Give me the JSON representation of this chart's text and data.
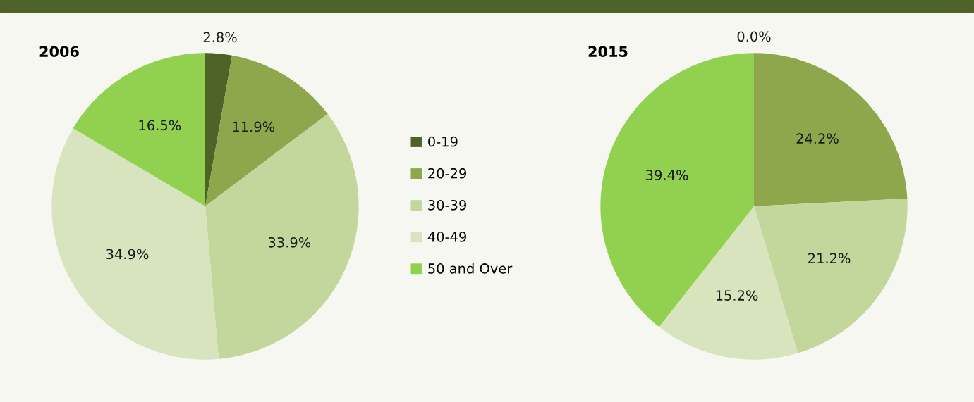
{
  "chart_data": [
    {
      "type": "pie",
      "title": "2006",
      "categories": [
        "0-19",
        "20-29",
        "30-39",
        "40-49",
        "50 and Over"
      ],
      "values": [
        2.8,
        11.9,
        33.9,
        34.9,
        16.5
      ],
      "value_labels": [
        "2.8%",
        "11.9%",
        "33.9%",
        "34.9%",
        "16.5%"
      ],
      "colors": [
        "#4f6228",
        "#8ea64c",
        "#c3d69b",
        "#d7e4bd",
        "#92d050"
      ],
      "legend": "right"
    },
    {
      "type": "pie",
      "title": "2015",
      "categories": [
        null,
        null,
        null,
        null,
        null
      ],
      "values": [
        0.0,
        24.2,
        21.2,
        15.2,
        39.4
      ],
      "value_labels": [
        "0.0%",
        "24.2%",
        "21.2%",
        "15.2%",
        "39.4%"
      ],
      "colors": [
        "#4f6228",
        "#8ea64c",
        "#c3d69b",
        "#d7e4bd",
        "#92d050"
      ]
    }
  ]
}
